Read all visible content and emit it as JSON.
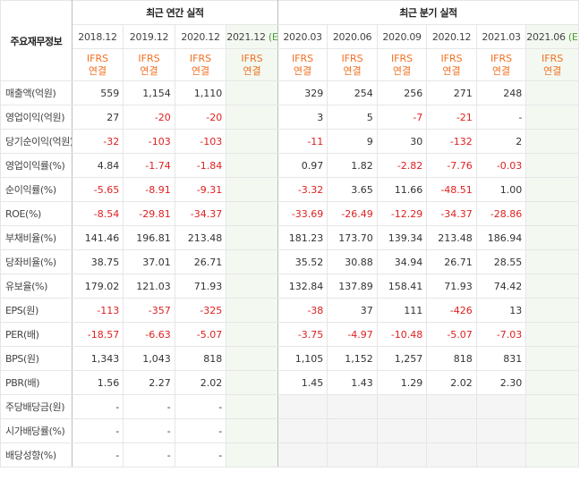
{
  "header": {
    "corner_label": "주요재무정보",
    "annual_group": "최근 연간 실적",
    "quarter_group": "최근 분기 실적",
    "estimate_mark": "(E)",
    "periods": [
      "2018.12",
      "2019.12",
      "2020.12",
      "2021.12",
      "2020.03",
      "2020.06",
      "2020.09",
      "2020.12",
      "2021.03",
      "2021.06"
    ],
    "ifrs_line1": "IFRS",
    "ifrs_line2": "연결"
  },
  "rows": [
    {
      "label": "매출액(억원)",
      "values": [
        "559",
        "1,154",
        "1,110",
        "",
        "329",
        "254",
        "256",
        "271",
        "248",
        ""
      ]
    },
    {
      "label": "영업이익(억원)",
      "values": [
        "27",
        "-20",
        "-20",
        "",
        "3",
        "5",
        "-7",
        "-21",
        "-",
        ""
      ]
    },
    {
      "label": "당기순이익(억원)",
      "values": [
        "-32",
        "-103",
        "-103",
        "",
        "-11",
        "9",
        "30",
        "-132",
        "2",
        ""
      ]
    },
    {
      "label": "영업이익률(%)",
      "values": [
        "4.84",
        "-1.74",
        "-1.84",
        "",
        "0.97",
        "1.82",
        "-2.82",
        "-7.76",
        "-0.03",
        ""
      ]
    },
    {
      "label": "순이익률(%)",
      "values": [
        "-5.65",
        "-8.91",
        "-9.31",
        "",
        "-3.32",
        "3.65",
        "11.66",
        "-48.51",
        "1.00",
        ""
      ]
    },
    {
      "label": "ROE(%)",
      "values": [
        "-8.54",
        "-29.81",
        "-34.37",
        "",
        "-33.69",
        "-26.49",
        "-12.29",
        "-34.37",
        "-28.86",
        ""
      ]
    },
    {
      "label": "부채비율(%)",
      "values": [
        "141.46",
        "196.81",
        "213.48",
        "",
        "181.23",
        "173.70",
        "139.34",
        "213.48",
        "186.94",
        ""
      ]
    },
    {
      "label": "당좌비율(%)",
      "values": [
        "38.75",
        "37.01",
        "26.71",
        "",
        "35.52",
        "30.88",
        "34.94",
        "26.71",
        "28.55",
        ""
      ]
    },
    {
      "label": "유보율(%)",
      "values": [
        "179.02",
        "121.03",
        "71.93",
        "",
        "132.84",
        "137.89",
        "158.41",
        "71.93",
        "74.42",
        ""
      ]
    },
    {
      "label": "EPS(원)",
      "values": [
        "-113",
        "-357",
        "-325",
        "",
        "-38",
        "37",
        "111",
        "-426",
        "13",
        ""
      ]
    },
    {
      "label": "PER(배)",
      "values": [
        "-18.57",
        "-6.63",
        "-5.07",
        "",
        "-3.75",
        "-4.97",
        "-10.48",
        "-5.07",
        "-7.03",
        ""
      ]
    },
    {
      "label": "BPS(원)",
      "values": [
        "1,343",
        "1,043",
        "818",
        "",
        "1,105",
        "1,152",
        "1,257",
        "818",
        "831",
        ""
      ]
    },
    {
      "label": "PBR(배)",
      "values": [
        "1.56",
        "2.27",
        "2.02",
        "",
        "1.45",
        "1.43",
        "1.29",
        "2.02",
        "2.30",
        ""
      ]
    },
    {
      "label": "주당배당금(원)",
      "values": [
        "-",
        "-",
        "-",
        "",
        "",
        "",
        "",
        "",
        "",
        ""
      ]
    },
    {
      "label": "시가배당률(%)",
      "values": [
        "-",
        "-",
        "-",
        "",
        "",
        "",
        "",
        "",
        "",
        ""
      ]
    },
    {
      "label": "배당성향(%)",
      "values": [
        "-",
        "-",
        "-",
        "",
        "",
        "",
        "",
        "",
        "",
        ""
      ]
    }
  ],
  "colors": {
    "negative": "#e02020",
    "ifrs": "#f26f21",
    "estimate_background": "#f3f9f1",
    "estimate_mark": "#4b9c34",
    "empty_background": "#f5f5f5"
  }
}
